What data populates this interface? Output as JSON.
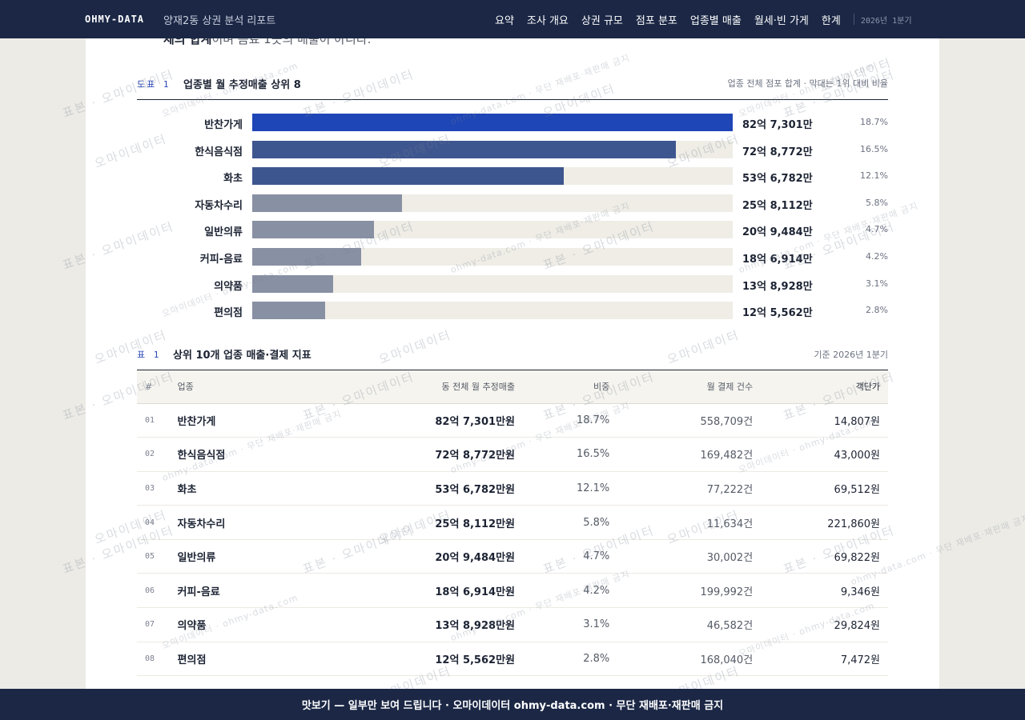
{
  "header": {
    "brand": "OHMY-DATA",
    "report_title": "양재2동 상권 분석 리포트",
    "nav": [
      "요약",
      "조사 개요",
      "상권 규모",
      "점포 분포",
      "업종별 매출",
      "월세·빈 가게",
      "한계"
    ],
    "period": "2026년 1분기"
  },
  "intro_fragment": {
    "bold": "체의 합계",
    "rest": "이며 음료 1곳의 매출이 아니다."
  },
  "figure": {
    "tag": "도표 1",
    "title": "업종별 월 추정매출 상위 8",
    "note": "업종 전체 점포 합계 · 막대는 1위 대비 비율"
  },
  "chart_data": {
    "type": "bar",
    "title": "업종별 월 추정매출 상위 8",
    "categories": [
      "반찬가게",
      "한식음식점",
      "화초",
      "자동차수리",
      "일반의류",
      "커피-음료",
      "의약품",
      "편의점"
    ],
    "values": [
      82.7301,
      72.8772,
      53.6782,
      25.8112,
      20.9484,
      18.6914,
      13.8928,
      12.5562
    ],
    "value_labels": [
      "82억 7,301만",
      "72억 8,772만",
      "53억 6,782만",
      "25억 8,112만",
      "20억 9,484만",
      "18억 6,914만",
      "13억 8,928만",
      "12억 5,562만"
    ],
    "shares": [
      "18.7%",
      "16.5%",
      "12.1%",
      "5.8%",
      "4.7%",
      "4.2%",
      "3.1%",
      "2.8%"
    ],
    "unit": "억",
    "orientation": "horizontal",
    "scale": "relative to rank 1",
    "colors": {
      "top1": "#1f46b6",
      "top3": "#3e5690",
      "rest": "#8890a3",
      "track": "#efede6"
    }
  },
  "table": {
    "tag": "표 1",
    "title": "상위 10개 업종 매출·결제 지표",
    "note": "기준 2026년 1분기",
    "columns": [
      "#",
      "업종",
      "동 전체 월 추정매출",
      "비중",
      "월 결제 건수",
      "객단가"
    ],
    "rows": [
      [
        "01",
        "반찬가게",
        "82억 7,301만원",
        "18.7%",
        "558,709건",
        "14,807원"
      ],
      [
        "02",
        "한식음식점",
        "72억 8,772만원",
        "16.5%",
        "169,482건",
        "43,000원"
      ],
      [
        "03",
        "화초",
        "53억 6,782만원",
        "12.1%",
        "77,222건",
        "69,512원"
      ],
      [
        "04",
        "자동차수리",
        "25억 8,112만원",
        "5.8%",
        "11,634건",
        "221,860원"
      ],
      [
        "05",
        "일반의류",
        "20억 9,484만원",
        "4.7%",
        "30,002건",
        "69,822원"
      ],
      [
        "06",
        "커피-음료",
        "18억 6,914만원",
        "4.2%",
        "199,992건",
        "9,346원"
      ],
      [
        "07",
        "의약품",
        "13억 8,928만원",
        "3.1%",
        "46,582건",
        "29,824원"
      ],
      [
        "08",
        "편의점",
        "12억 5,562만원",
        "2.8%",
        "168,040건",
        "7,472원"
      ]
    ]
  },
  "watermarks": {
    "large_a": "표본 · 오마이데이터",
    "large_b": "오마이데이터",
    "small_a": "ohmy-data.com · 무단 재배포·재판매 금지",
    "small_b": "오마이데이터 · ohmy-data.com"
  },
  "banner": "맛보기 — 일부만 보여 드립니다 · 오마이데이터 ohmy-data.com · 무단 재배포·재판매 금지"
}
